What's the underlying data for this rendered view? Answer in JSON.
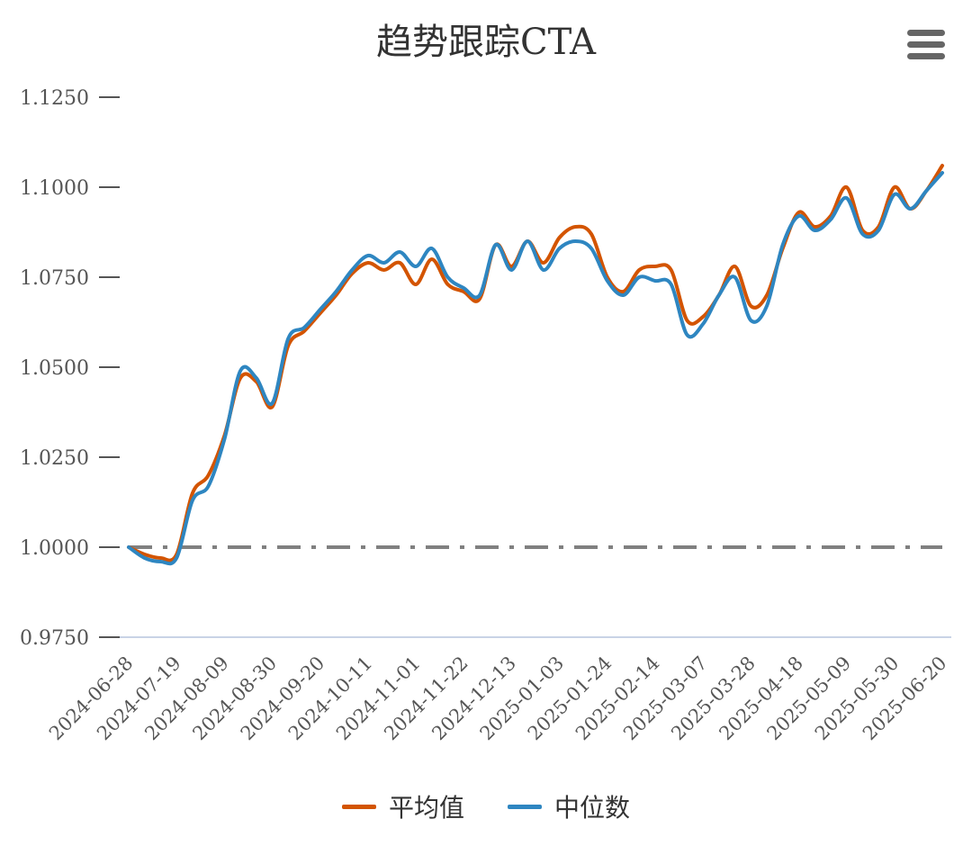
{
  "chart_data": {
    "type": "line",
    "title": "趋势跟踪CTA",
    "xlabel": "",
    "ylabel": "",
    "ylim": [
      0.975,
      1.13
    ],
    "y_ticks": [
      "0.9750",
      "1.0000",
      "1.0250",
      "1.0500",
      "1.0750",
      "1.1000",
      "1.1250"
    ],
    "y_tick_values": [
      0.975,
      1.0,
      1.025,
      1.05,
      1.075,
      1.1,
      1.125
    ],
    "x_ticks": [
      "2024-06-28",
      "2024-07-19",
      "2024-08-09",
      "2024-08-30",
      "2024-09-20",
      "2024-10-11",
      "2024-11-01",
      "2024-11-22",
      "2024-12-13",
      "2025-01-03",
      "2025-01-24",
      "2025-02-14",
      "2025-03-07",
      "2025-03-28",
      "2025-04-18",
      "2025-05-09",
      "2025-05-30",
      "2025-06-20"
    ],
    "x": [
      "2024-06-28",
      "2024-07-05",
      "2024-07-12",
      "2024-07-19",
      "2024-07-26",
      "2024-08-02",
      "2024-08-09",
      "2024-08-16",
      "2024-08-23",
      "2024-08-30",
      "2024-09-06",
      "2024-09-13",
      "2024-09-20",
      "2024-09-27",
      "2024-10-04",
      "2024-10-11",
      "2024-10-18",
      "2024-10-25",
      "2024-11-01",
      "2024-11-08",
      "2024-11-15",
      "2024-11-22",
      "2024-11-29",
      "2024-12-06",
      "2024-12-13",
      "2024-12-20",
      "2024-12-27",
      "2025-01-03",
      "2025-01-10",
      "2025-01-17",
      "2025-01-24",
      "2025-01-31",
      "2025-02-07",
      "2025-02-14",
      "2025-02-21",
      "2025-02-28",
      "2025-03-07",
      "2025-03-14",
      "2025-03-21",
      "2025-03-28",
      "2025-04-04",
      "2025-04-11",
      "2025-04-18",
      "2025-04-25",
      "2025-05-02",
      "2025-05-09",
      "2025-05-16",
      "2025-05-23",
      "2025-05-30",
      "2025-06-06",
      "2025-06-13",
      "2025-06-20"
    ],
    "series": [
      {
        "name": "平均值",
        "color": "#d35400",
        "values": [
          1.0,
          0.998,
          0.997,
          0.998,
          1.015,
          1.02,
          1.031,
          1.047,
          1.046,
          1.039,
          1.056,
          1.06,
          1.065,
          1.07,
          1.076,
          1.079,
          1.077,
          1.079,
          1.073,
          1.08,
          1.073,
          1.071,
          1.069,
          1.084,
          1.078,
          1.085,
          1.079,
          1.086,
          1.089,
          1.087,
          1.075,
          1.071,
          1.077,
          1.078,
          1.077,
          1.063,
          1.064,
          1.07,
          1.078,
          1.067,
          1.07,
          1.083,
          1.093,
          1.089,
          1.092,
          1.1,
          1.088,
          1.089,
          1.1,
          1.094,
          1.099,
          1.106
        ]
      },
      {
        "name": "中位数",
        "color": "#2e86c1",
        "values": [
          1.0,
          0.997,
          0.996,
          0.997,
          1.013,
          1.017,
          1.03,
          1.049,
          1.047,
          1.04,
          1.058,
          1.061,
          1.066,
          1.071,
          1.077,
          1.081,
          1.079,
          1.082,
          1.078,
          1.083,
          1.075,
          1.072,
          1.07,
          1.084,
          1.077,
          1.085,
          1.077,
          1.083,
          1.085,
          1.083,
          1.074,
          1.07,
          1.075,
          1.074,
          1.073,
          1.059,
          1.062,
          1.07,
          1.075,
          1.063,
          1.067,
          1.084,
          1.092,
          1.088,
          1.091,
          1.097,
          1.087,
          1.088,
          1.098,
          1.094,
          1.099,
          1.104
        ]
      }
    ],
    "baseline": {
      "value": 1.0,
      "color": "#808080"
    },
    "grid": false,
    "legend": "bottom-center"
  },
  "menu": {
    "icon": "hamburger-menu-icon"
  }
}
